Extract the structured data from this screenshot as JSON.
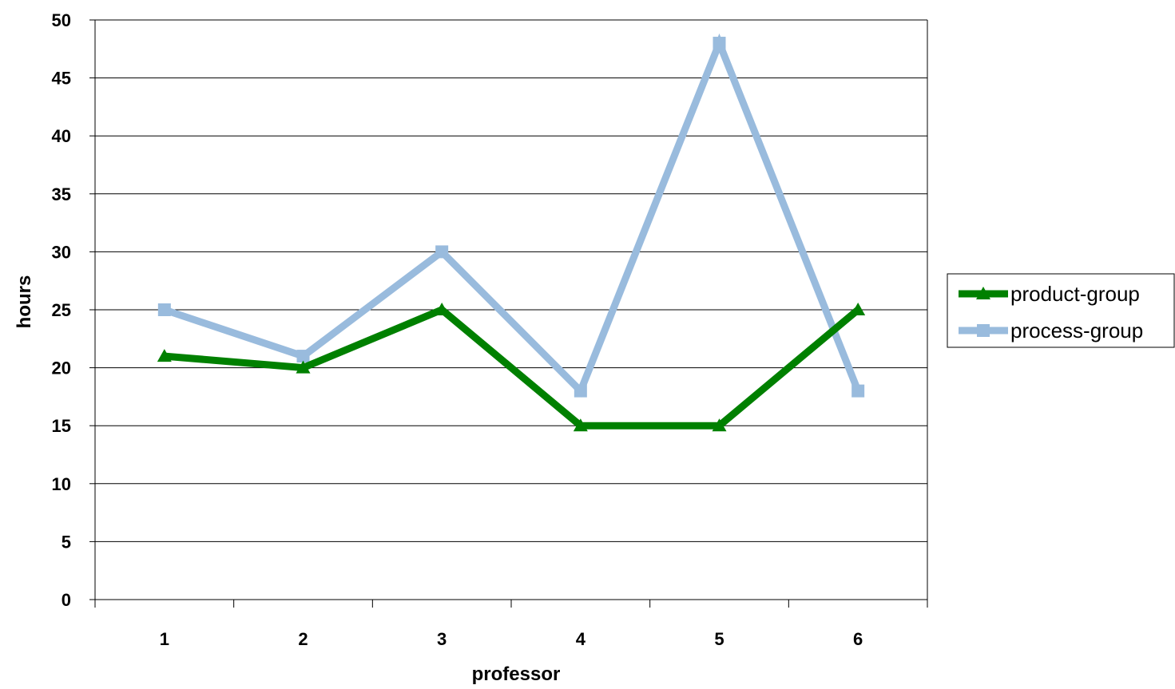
{
  "chart_data": {
    "type": "line",
    "xlabel": "professor",
    "ylabel": "hours",
    "categories": [
      "1",
      "2",
      "3",
      "4",
      "5",
      "6"
    ],
    "ylim": [
      0,
      50
    ],
    "yticks": [
      0,
      5,
      10,
      15,
      20,
      25,
      30,
      35,
      40,
      45,
      50
    ],
    "grid": true,
    "legend_position": "right",
    "series": [
      {
        "name": "product-group",
        "values": [
          21,
          20,
          25,
          15,
          15,
          25
        ],
        "color": "#008000",
        "marker": "triangle"
      },
      {
        "name": "process-group",
        "values": [
          25,
          21,
          30,
          18,
          48,
          18
        ],
        "color": "#99bbdd",
        "marker": "square"
      }
    ]
  }
}
